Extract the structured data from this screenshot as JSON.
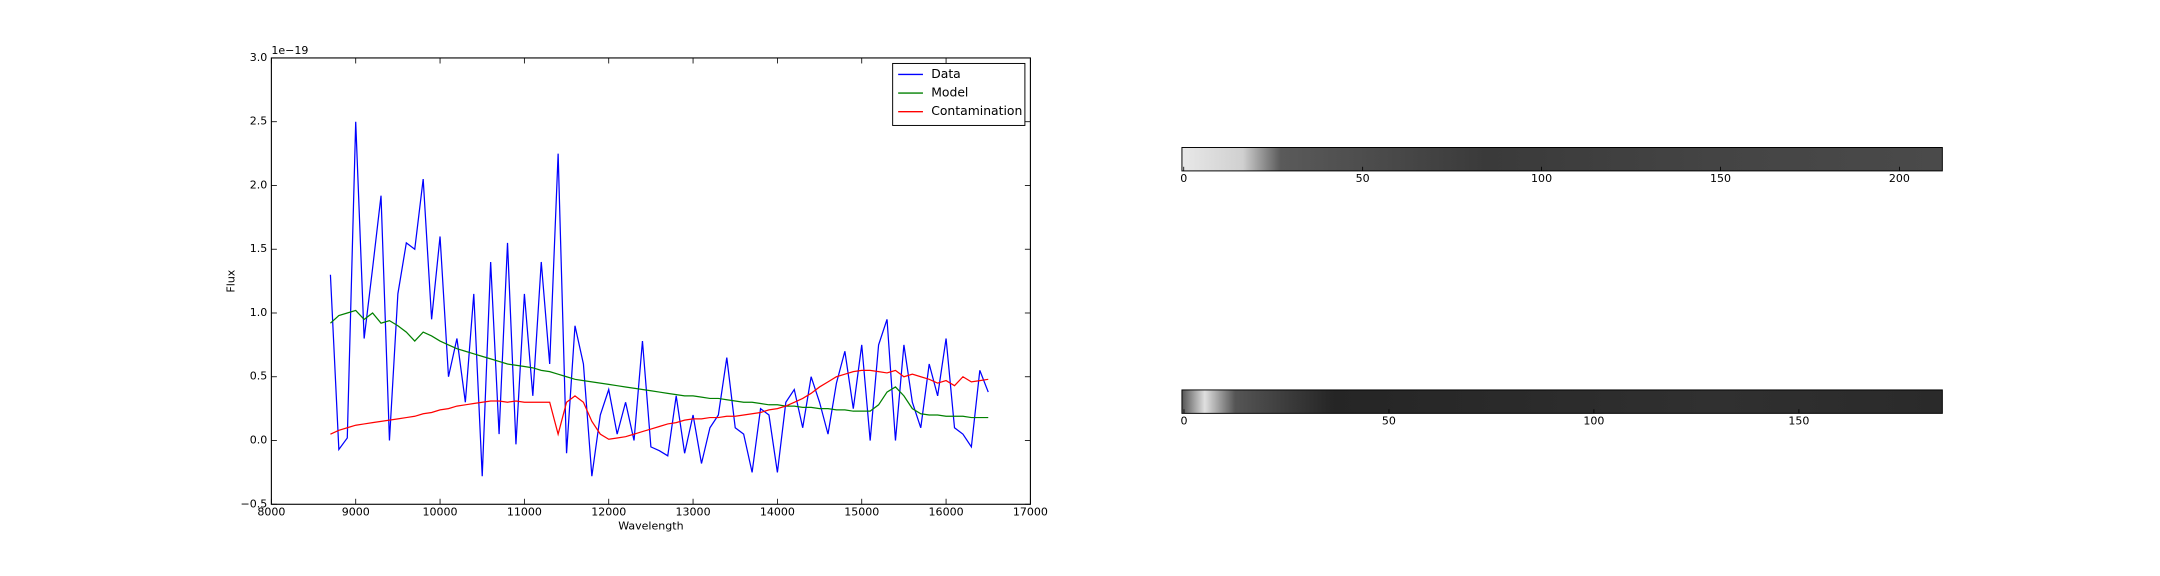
{
  "chart_data": [
    {
      "type": "line",
      "offset_text": "1e−19",
      "xlabel": "Wavelength",
      "ylabel": "Flux",
      "x": [
        8700,
        8800,
        8900,
        9000,
        9100,
        9200,
        9300,
        9400,
        9500,
        9600,
        9700,
        9800,
        9900,
        10000,
        10100,
        10200,
        10300,
        10400,
        10500,
        10600,
        10700,
        10800,
        10900,
        11000,
        11100,
        11200,
        11300,
        11400,
        11500,
        11600,
        11700,
        11800,
        11900,
        12000,
        12100,
        12200,
        12300,
        12400,
        12500,
        12600,
        12700,
        12800,
        12900,
        13000,
        13100,
        13200,
        13300,
        13400,
        13500,
        13600,
        13700,
        13800,
        13900,
        14000,
        14100,
        14200,
        14300,
        14400,
        14500,
        14600,
        14700,
        14800,
        14900,
        15000,
        15100,
        15200,
        15300,
        15400,
        15500,
        15600,
        15700,
        15800,
        15900,
        16000,
        16100,
        16200,
        16300,
        16400,
        16500
      ],
      "series": [
        {
          "name": "Data",
          "color": "#0000ff",
          "values": [
            1.3,
            -0.07,
            0.02,
            2.5,
            0.8,
            1.35,
            1.92,
            0.0,
            1.15,
            1.55,
            1.5,
            2.05,
            0.95,
            1.6,
            0.5,
            0.8,
            0.3,
            1.15,
            -0.28,
            1.4,
            0.05,
            1.55,
            -0.03,
            1.15,
            0.35,
            1.4,
            0.6,
            2.25,
            -0.1,
            0.9,
            0.6,
            -0.28,
            0.2,
            0.4,
            0.05,
            0.3,
            0.0,
            0.78,
            -0.05,
            -0.08,
            -0.12,
            0.35,
            -0.1,
            0.2,
            -0.18,
            0.1,
            0.2,
            0.65,
            0.1,
            0.05,
            -0.25,
            0.25,
            0.2,
            -0.25,
            0.3,
            0.4,
            0.1,
            0.5,
            0.3,
            0.05,
            0.45,
            0.7,
            0.25,
            0.75,
            0.0,
            0.75,
            0.95,
            0.0,
            0.75,
            0.3,
            0.1,
            0.6,
            0.35,
            0.8,
            0.1,
            0.05,
            -0.05,
            0.55,
            0.38
          ]
        },
        {
          "name": "Model",
          "color": "#008000",
          "values": [
            0.92,
            0.98,
            1.0,
            1.02,
            0.95,
            1.0,
            0.92,
            0.94,
            0.9,
            0.85,
            0.78,
            0.85,
            0.82,
            0.78,
            0.75,
            0.72,
            0.7,
            0.68,
            0.66,
            0.64,
            0.62,
            0.6,
            0.59,
            0.58,
            0.57,
            0.55,
            0.54,
            0.52,
            0.5,
            0.48,
            0.47,
            0.46,
            0.45,
            0.44,
            0.43,
            0.42,
            0.41,
            0.4,
            0.39,
            0.38,
            0.37,
            0.36,
            0.35,
            0.35,
            0.34,
            0.33,
            0.33,
            0.32,
            0.31,
            0.3,
            0.3,
            0.29,
            0.28,
            0.28,
            0.27,
            0.27,
            0.26,
            0.26,
            0.25,
            0.25,
            0.24,
            0.24,
            0.23,
            0.23,
            0.23,
            0.28,
            0.38,
            0.42,
            0.35,
            0.25,
            0.21,
            0.2,
            0.2,
            0.19,
            0.19,
            0.19,
            0.18,
            0.18,
            0.18
          ]
        },
        {
          "name": "Contamination",
          "color": "#ff0000",
          "values": [
            0.05,
            0.08,
            0.1,
            0.12,
            0.13,
            0.14,
            0.15,
            0.16,
            0.17,
            0.18,
            0.19,
            0.21,
            0.22,
            0.24,
            0.25,
            0.27,
            0.28,
            0.29,
            0.3,
            0.31,
            0.31,
            0.3,
            0.31,
            0.3,
            0.3,
            0.3,
            0.3,
            0.05,
            0.3,
            0.35,
            0.3,
            0.15,
            0.05,
            0.01,
            0.02,
            0.03,
            0.05,
            0.07,
            0.09,
            0.11,
            0.13,
            0.14,
            0.16,
            0.17,
            0.17,
            0.18,
            0.18,
            0.19,
            0.19,
            0.2,
            0.21,
            0.22,
            0.24,
            0.25,
            0.27,
            0.3,
            0.33,
            0.37,
            0.42,
            0.46,
            0.5,
            0.52,
            0.54,
            0.55,
            0.55,
            0.54,
            0.53,
            0.55,
            0.5,
            0.52,
            0.5,
            0.48,
            0.45,
            0.47,
            0.43,
            0.5,
            0.46,
            0.47,
            0.48
          ]
        }
      ],
      "xlim": [
        8000,
        17000
      ],
      "xticks": [
        8000,
        9000,
        10000,
        11000,
        12000,
        13000,
        14000,
        15000,
        16000,
        17000
      ],
      "ylim": [
        -0.5,
        3.0
      ],
      "yticks": [
        {
          "value": -0.5,
          "label": "−0.5"
        },
        {
          "value": 0,
          "label": "0.0"
        },
        0.5,
        {
          "value": 1,
          "label": "1.0"
        },
        1.5,
        {
          "value": 2,
          "label": "2.0"
        },
        2.5,
        {
          "value": 3,
          "label": "3.0"
        }
      ],
      "legend": "upper right"
    },
    {
      "type": "image",
      "xlim": [
        -0.5,
        212
      ],
      "xticks": [
        0,
        50,
        100,
        150,
        200
      ]
    },
    {
      "type": "image",
      "xlim": [
        -0.5,
        185
      ],
      "xticks": [
        0,
        50,
        100,
        150
      ]
    }
  ]
}
